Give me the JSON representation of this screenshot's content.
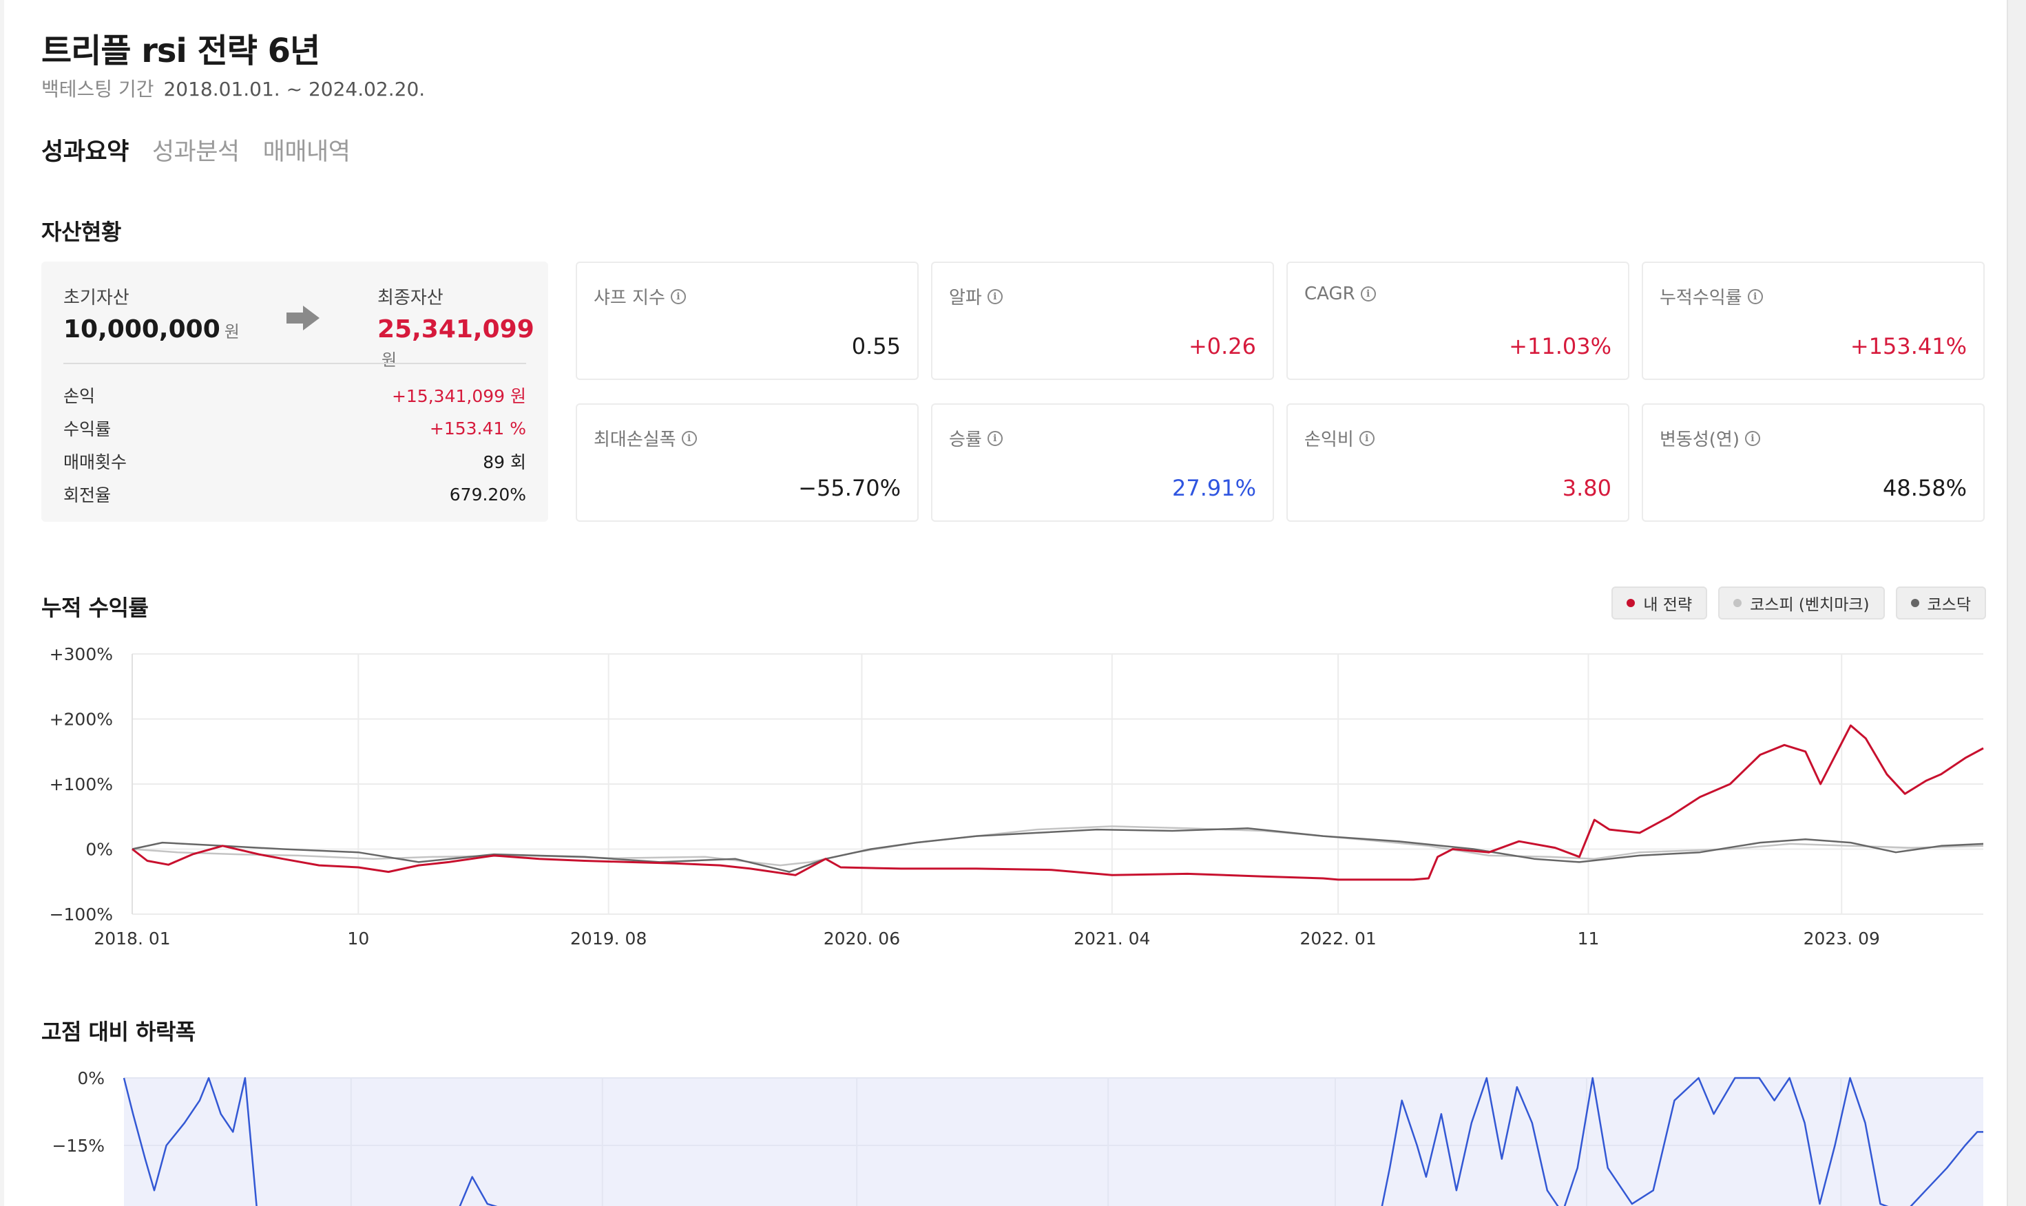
{
  "header": {
    "title": "트리플 rsi 전략 6년",
    "period_label": "백테스팅 기간",
    "period_range": "2018.01.01. ~ 2024.02.20."
  },
  "tabs": [
    {
      "label": "성과요약",
      "active": true
    },
    {
      "label": "성과분석",
      "active": false
    },
    {
      "label": "매매내역",
      "active": false
    }
  ],
  "assets": {
    "section_title": "자산현황",
    "initial_label": "초기자산",
    "initial_value": "10,000,000",
    "initial_unit": "원",
    "final_label": "최종자산",
    "final_value": "25,341,099",
    "final_unit": "원",
    "rows": [
      {
        "label": "손익",
        "value": "+15,341,099 원",
        "color": "#d61a3c"
      },
      {
        "label": "수익률",
        "value": "+153.41 %",
        "color": "#d61a3c"
      },
      {
        "label": "매매횟수",
        "value": "89 회",
        "color": "#1a1a1a"
      },
      {
        "label": "회전율",
        "value": "679.20%",
        "color": "#1a1a1a"
      }
    ]
  },
  "metrics": [
    {
      "label": "샤프 지수",
      "value": "0.55",
      "tone": "neutral"
    },
    {
      "label": "알파",
      "value": "+0.26",
      "tone": "red"
    },
    {
      "label": "CAGR",
      "value": "+11.03%",
      "tone": "red"
    },
    {
      "label": "누적수익률",
      "value": "+153.41%",
      "tone": "red"
    },
    {
      "label": "최대손실폭",
      "value": "−55.70%",
      "tone": "neutral"
    },
    {
      "label": "승률",
      "value": "27.91%",
      "tone": "blue"
    },
    {
      "label": "손익비",
      "value": "3.80",
      "tone": "red"
    },
    {
      "label": "변동성(연)",
      "value": "48.58%",
      "tone": "neutral"
    }
  ],
  "legend": [
    {
      "label": "내 전략",
      "color": "#c8102e"
    },
    {
      "label": "코스피 (벤치마크)",
      "color": "#c4c4c4"
    },
    {
      "label": "코스닥",
      "color": "#666666"
    }
  ],
  "chart_data": [
    {
      "type": "line",
      "title": "누적 수익률",
      "ytick_labels": [
        "+300%",
        "+200%",
        "+100%",
        "0%",
        "−100%"
      ],
      "yticks": [
        300,
        200,
        100,
        0,
        -100
      ],
      "ylim": [
        -100,
        300
      ],
      "x_range": [
        2018.0,
        2024.14
      ],
      "xtick_labels": [
        "2018. 01",
        "10",
        "2019. 08",
        "2020. 06",
        "2021. 04",
        "2022. 01",
        "11",
        "2023. 09"
      ],
      "xticks": [
        2018.0,
        2018.75,
        2019.58,
        2020.42,
        2021.25,
        2022.0,
        2022.83,
        2023.67
      ],
      "grid": true,
      "legend_position": "top-right",
      "series": [
        {
          "name": "내 전략",
          "color": "#c8102e",
          "points": [
            [
              2018.0,
              0
            ],
            [
              2018.05,
              -18
            ],
            [
              2018.12,
              -24
            ],
            [
              2018.2,
              -8
            ],
            [
              2018.3,
              5
            ],
            [
              2018.42,
              -8
            ],
            [
              2018.5,
              -15
            ],
            [
              2018.62,
              -25
            ],
            [
              2018.75,
              -28
            ],
            [
              2018.85,
              -35
            ],
            [
              2018.95,
              -25
            ],
            [
              2019.05,
              -20
            ],
            [
              2019.2,
              -10
            ],
            [
              2019.35,
              -15
            ],
            [
              2019.5,
              -18
            ],
            [
              2019.65,
              -20
            ],
            [
              2019.8,
              -22
            ],
            [
              2019.95,
              -25
            ],
            [
              2020.05,
              -30
            ],
            [
              2020.2,
              -40
            ],
            [
              2020.3,
              -15
            ],
            [
              2020.35,
              -28
            ],
            [
              2020.55,
              -30
            ],
            [
              2020.8,
              -30
            ],
            [
              2021.05,
              -32
            ],
            [
              2021.25,
              -40
            ],
            [
              2021.5,
              -38
            ],
            [
              2021.75,
              -42
            ],
            [
              2021.95,
              -45
            ],
            [
              2022.0,
              -47
            ],
            [
              2022.25,
              -47
            ],
            [
              2022.3,
              -45
            ],
            [
              2022.33,
              -12
            ],
            [
              2022.38,
              0
            ],
            [
              2022.5,
              -5
            ],
            [
              2022.6,
              12
            ],
            [
              2022.72,
              2
            ],
            [
              2022.8,
              -12
            ],
            [
              2022.85,
              45
            ],
            [
              2022.9,
              30
            ],
            [
              2023.0,
              25
            ],
            [
              2023.1,
              50
            ],
            [
              2023.2,
              80
            ],
            [
              2023.3,
              100
            ],
            [
              2023.4,
              145
            ],
            [
              2023.48,
              160
            ],
            [
              2023.55,
              150
            ],
            [
              2023.6,
              100
            ],
            [
              2023.7,
              190
            ],
            [
              2023.75,
              170
            ],
            [
              2023.82,
              115
            ],
            [
              2023.88,
              85
            ],
            [
              2023.95,
              105
            ],
            [
              2024.0,
              115
            ],
            [
              2024.08,
              140
            ],
            [
              2024.14,
              155
            ]
          ]
        },
        {
          "name": "코스피 (벤치마크)",
          "color": "#c4c4c4",
          "points": [
            [
              2018.0,
              0
            ],
            [
              2018.15,
              -5
            ],
            [
              2018.35,
              -8
            ],
            [
              2018.55,
              -10
            ],
            [
              2018.8,
              -15
            ],
            [
              2019.0,
              -12
            ],
            [
              2019.3,
              -10
            ],
            [
              2019.6,
              -14
            ],
            [
              2019.9,
              -12
            ],
            [
              2020.15,
              -25
            ],
            [
              2020.25,
              -20
            ],
            [
              2020.4,
              -5
            ],
            [
              2020.6,
              10
            ],
            [
              2020.8,
              20
            ],
            [
              2021.0,
              30
            ],
            [
              2021.25,
              35
            ],
            [
              2021.5,
              32
            ],
            [
              2021.75,
              28
            ],
            [
              2022.0,
              18
            ],
            [
              2022.3,
              5
            ],
            [
              2022.5,
              -10
            ],
            [
              2022.7,
              -12
            ],
            [
              2022.85,
              -15
            ],
            [
              2023.0,
              -5
            ],
            [
              2023.3,
              0
            ],
            [
              2023.5,
              8
            ],
            [
              2023.7,
              5
            ],
            [
              2023.9,
              2
            ],
            [
              2024.14,
              5
            ]
          ]
        },
        {
          "name": "코스닥",
          "color": "#666666",
          "points": [
            [
              2018.0,
              0
            ],
            [
              2018.1,
              10
            ],
            [
              2018.3,
              5
            ],
            [
              2018.5,
              0
            ],
            [
              2018.75,
              -5
            ],
            [
              2018.95,
              -20
            ],
            [
              2019.2,
              -8
            ],
            [
              2019.5,
              -12
            ],
            [
              2019.75,
              -20
            ],
            [
              2020.0,
              -15
            ],
            [
              2020.18,
              -35
            ],
            [
              2020.3,
              -15
            ],
            [
              2020.45,
              0
            ],
            [
              2020.6,
              10
            ],
            [
              2020.8,
              20
            ],
            [
              2021.0,
              25
            ],
            [
              2021.2,
              30
            ],
            [
              2021.45,
              28
            ],
            [
              2021.7,
              32
            ],
            [
              2021.95,
              20
            ],
            [
              2022.2,
              12
            ],
            [
              2022.45,
              0
            ],
            [
              2022.65,
              -15
            ],
            [
              2022.8,
              -20
            ],
            [
              2023.0,
              -10
            ],
            [
              2023.2,
              -5
            ],
            [
              2023.4,
              10
            ],
            [
              2023.55,
              15
            ],
            [
              2023.7,
              10
            ],
            [
              2023.85,
              -5
            ],
            [
              2024.0,
              5
            ],
            [
              2024.14,
              8
            ]
          ]
        }
      ]
    },
    {
      "type": "area",
      "title": "고점 대비 하락폭",
      "ytick_labels": [
        "0%",
        "−15%"
      ],
      "yticks": [
        0,
        -15
      ],
      "x_range": [
        2018.0,
        2024.14
      ],
      "grid": true,
      "series": [
        {
          "name": "내 전략",
          "color": "#3358d4",
          "fill": "#eef0fb",
          "points": [
            [
              2018.0,
              0
            ],
            [
              2018.03,
              -8
            ],
            [
              2018.07,
              -18
            ],
            [
              2018.1,
              -25
            ],
            [
              2018.14,
              -15
            ],
            [
              2018.2,
              -10
            ],
            [
              2018.25,
              -5
            ],
            [
              2018.28,
              0
            ],
            [
              2018.32,
              -8
            ],
            [
              2018.36,
              -12
            ],
            [
              2018.4,
              0
            ],
            [
              2018.44,
              -30
            ],
            [
              2018.5,
              -30
            ],
            [
              2018.6,
              -30
            ],
            [
              2019.1,
              -30
            ],
            [
              2019.15,
              -22
            ],
            [
              2019.2,
              -28
            ],
            [
              2019.3,
              -30
            ],
            [
              2020.5,
              -30
            ],
            [
              2022.15,
              -30
            ],
            [
              2022.18,
              -20
            ],
            [
              2022.22,
              -5
            ],
            [
              2022.27,
              -15
            ],
            [
              2022.3,
              -22
            ],
            [
              2022.35,
              -8
            ],
            [
              2022.4,
              -25
            ],
            [
              2022.45,
              -10
            ],
            [
              2022.5,
              0
            ],
            [
              2022.55,
              -18
            ],
            [
              2022.6,
              -2
            ],
            [
              2022.65,
              -10
            ],
            [
              2022.7,
              -25
            ],
            [
              2022.75,
              -30
            ],
            [
              2022.8,
              -20
            ],
            [
              2022.85,
              0
            ],
            [
              2022.9,
              -20
            ],
            [
              2022.98,
              -28
            ],
            [
              2023.05,
              -25
            ],
            [
              2023.12,
              -5
            ],
            [
              2023.2,
              0
            ],
            [
              2023.25,
              -8
            ],
            [
              2023.32,
              0
            ],
            [
              2023.4,
              0
            ],
            [
              2023.45,
              -5
            ],
            [
              2023.5,
              0
            ],
            [
              2023.55,
              -10
            ],
            [
              2023.6,
              -28
            ],
            [
              2023.65,
              -15
            ],
            [
              2023.7,
              0
            ],
            [
              2023.75,
              -10
            ],
            [
              2023.8,
              -28
            ],
            [
              2023.88,
              -30
            ],
            [
              2023.95,
              -25
            ],
            [
              2024.02,
              -20
            ],
            [
              2024.08,
              -15
            ],
            [
              2024.12,
              -12
            ],
            [
              2024.14,
              -12
            ]
          ]
        }
      ]
    }
  ]
}
